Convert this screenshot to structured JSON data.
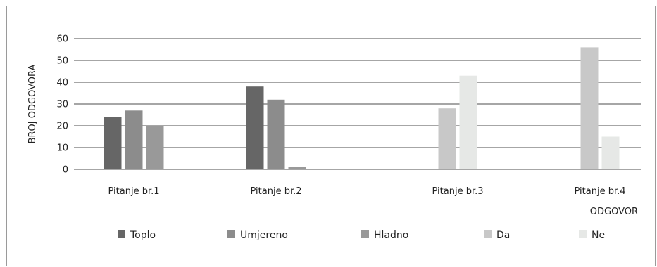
{
  "chart_data": {
    "type": "bar",
    "xlabel": "ODGOVOR",
    "ylabel": "BROJ ODGOVORA",
    "ylim": [
      0,
      60
    ],
    "yticks": [
      0,
      10,
      20,
      30,
      40,
      50,
      60
    ],
    "grid": true,
    "legend_position": "bottom",
    "categories": [
      "Pitanje br.1",
      "Pitanje br.2",
      "Pitanje br.3",
      "Pitanje br.4"
    ],
    "series": [
      {
        "name": "Toplo",
        "color": "#666666",
        "values": [
          24,
          38,
          null,
          null
        ]
      },
      {
        "name": "Umjereno",
        "color": "#8c8c8c",
        "values": [
          27,
          32,
          null,
          null
        ]
      },
      {
        "name": "Hladno",
        "color": "#999999",
        "values": [
          20,
          1,
          null,
          null
        ]
      },
      {
        "name": "Da",
        "color": "#c8c8c8",
        "values": [
          null,
          null,
          28,
          56
        ]
      },
      {
        "name": "Ne",
        "color": "#e6e8e6",
        "values": [
          null,
          null,
          43,
          15
        ]
      }
    ]
  }
}
